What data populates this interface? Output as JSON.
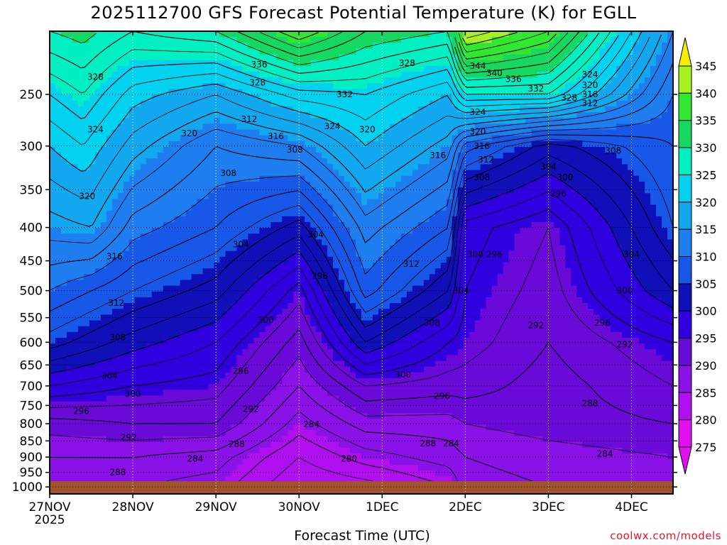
{
  "title": "2025112700 GFS Forecast Potential Temperature (K) for EGLL",
  "xlabel": "Forecast Time (UTC)",
  "credit": "coolwx.com/models",
  "chart_data": {
    "type": "heatmap",
    "title": "2025112700 GFS Forecast Potential Temperature (K) for EGLL",
    "xlabel": "Forecast Time (UTC)",
    "ylabel": "",
    "x_ticks": [
      "27NOV",
      "28NOV",
      "29NOV",
      "30NOV",
      "1DEC",
      "2DEC",
      "3DEC",
      "4DEC"
    ],
    "x_tick_sub": "2025",
    "x_range_days": [
      0,
      7.5
    ],
    "y_ticks": [
      250,
      300,
      350,
      400,
      450,
      500,
      550,
      600,
      650,
      700,
      750,
      800,
      850,
      900,
      950,
      1000
    ],
    "y_scale": "log",
    "y_range": [
      1025,
      200
    ],
    "grid": true,
    "colorbar": {
      "levels": [
        275,
        280,
        285,
        290,
        295,
        300,
        305,
        310,
        315,
        320,
        325,
        330,
        335,
        340,
        345
      ],
      "colors": [
        "#e010f0",
        "#b010f0",
        "#8a12e8",
        "#6a0ad8",
        "#3000e0",
        "#1010b8",
        "#1858e8",
        "#1e7ef0",
        "#12a8f0",
        "#00d2f0",
        "#00f0c4",
        "#14d860",
        "#30e830",
        "#a8f020",
        "#f0f000"
      ],
      "extend": "both"
    },
    "contour_labels": [
      {
        "t": 0.55,
        "p": 235,
        "v": 328
      },
      {
        "t": 0.55,
        "p": 283,
        "v": 324
      },
      {
        "t": 0.45,
        "p": 358,
        "v": 320
      },
      {
        "t": 0.78,
        "p": 443,
        "v": 316
      },
      {
        "t": 0.8,
        "p": 522,
        "v": 312
      },
      {
        "t": 0.82,
        "p": 590,
        "v": 308
      },
      {
        "t": 0.72,
        "p": 675,
        "v": 304
      },
      {
        "t": 1.0,
        "p": 720,
        "v": 300
      },
      {
        "t": 0.38,
        "p": 765,
        "v": 296
      },
      {
        "t": 0.95,
        "p": 840,
        "v": 292
      },
      {
        "t": 0.82,
        "p": 950,
        "v": 288
      },
      {
        "t": 1.75,
        "p": 905,
        "v": 284
      },
      {
        "t": 1.68,
        "p": 287,
        "v": 320
      },
      {
        "t": 2.15,
        "p": 330,
        "v": 308
      },
      {
        "t": 2.4,
        "p": 273,
        "v": 312
      },
      {
        "t": 2.3,
        "p": 425,
        "v": 304
      },
      {
        "t": 2.3,
        "p": 664,
        "v": 296
      },
      {
        "t": 2.42,
        "p": 760,
        "v": 292
      },
      {
        "t": 2.25,
        "p": 860,
        "v": 288
      },
      {
        "t": 2.52,
        "p": 225,
        "v": 336
      },
      {
        "t": 2.5,
        "p": 240,
        "v": 328
      },
      {
        "t": 2.72,
        "p": 290,
        "v": 316
      },
      {
        "t": 2.95,
        "p": 304,
        "v": 308
      },
      {
        "t": 3.2,
        "p": 410,
        "v": 304
      },
      {
        "t": 2.6,
        "p": 555,
        "v": 300
      },
      {
        "t": 3.25,
        "p": 475,
        "v": 296
      },
      {
        "t": 3.55,
        "p": 250,
        "v": 332
      },
      {
        "t": 3.4,
        "p": 280,
        "v": 324
      },
      {
        "t": 3.82,
        "p": 283,
        "v": 320
      },
      {
        "t": 3.15,
        "p": 802,
        "v": 284
      },
      {
        "t": 3.6,
        "p": 905,
        "v": 280
      },
      {
        "t": 4.35,
        "p": 455,
        "v": 312
      },
      {
        "t": 4.67,
        "p": 310,
        "v": 316
      },
      {
        "t": 4.6,
        "p": 560,
        "v": 308
      },
      {
        "t": 4.25,
        "p": 673,
        "v": 300
      },
      {
        "t": 4.72,
        "p": 725,
        "v": 296
      },
      {
        "t": 4.55,
        "p": 858,
        "v": 288
      },
      {
        "t": 4.83,
        "p": 858,
        "v": 284
      },
      {
        "t": 4.3,
        "p": 224,
        "v": 328
      },
      {
        "t": 5.15,
        "p": 226,
        "v": 344
      },
      {
        "t": 5.35,
        "p": 232,
        "v": 340
      },
      {
        "t": 5.58,
        "p": 237,
        "v": 336
      },
      {
        "t": 5.85,
        "p": 245,
        "v": 332
      },
      {
        "t": 6.25,
        "p": 253,
        "v": 328
      },
      {
        "t": 6.5,
        "p": 233,
        "v": 324
      },
      {
        "t": 6.5,
        "p": 242,
        "v": 320
      },
      {
        "t": 6.5,
        "p": 250,
        "v": 316
      },
      {
        "t": 6.5,
        "p": 258,
        "v": 312
      },
      {
        "t": 5.15,
        "p": 266,
        "v": 324
      },
      {
        "t": 5.15,
        "p": 285,
        "v": 320
      },
      {
        "t": 5.2,
        "p": 300,
        "v": 316
      },
      {
        "t": 5.25,
        "p": 315,
        "v": 312
      },
      {
        "t": 5.2,
        "p": 335,
        "v": 308
      },
      {
        "t": 6.0,
        "p": 323,
        "v": 304
      },
      {
        "t": 6.2,
        "p": 335,
        "v": 300
      },
      {
        "t": 6.12,
        "p": 355,
        "v": 296
      },
      {
        "t": 5.12,
        "p": 440,
        "v": 300
      },
      {
        "t": 5.35,
        "p": 440,
        "v": 296
      },
      {
        "t": 4.95,
        "p": 500,
        "v": 304
      },
      {
        "t": 5.85,
        "p": 565,
        "v": 292
      },
      {
        "t": 7.0,
        "p": 440,
        "v": 304
      },
      {
        "t": 6.92,
        "p": 500,
        "v": 300
      },
      {
        "t": 6.65,
        "p": 560,
        "v": 296
      },
      {
        "t": 6.92,
        "p": 605,
        "v": 292
      },
      {
        "t": 6.5,
        "p": 745,
        "v": 288
      },
      {
        "t": 6.68,
        "p": 890,
        "v": 284
      },
      {
        "t": 6.78,
        "p": 305,
        "v": 308
      }
    ]
  }
}
